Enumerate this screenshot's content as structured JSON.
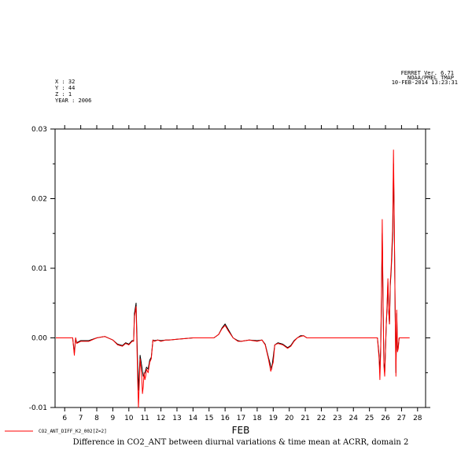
{
  "header": {
    "meta_left": [
      "X : 32",
      "Y : 44",
      "Z : 1",
      "YEAR : 2006"
    ],
    "meta_right": [
      "FERRET Ver. 6.71",
      "NOAA/PMEL TMAP",
      "10-FEB-2014 13:23:31"
    ]
  },
  "chart_data": {
    "type": "line",
    "title": "Difference in CO2_ANT between diurnal variations & time mean at ACRR, domain 2",
    "xlabel": "FEB",
    "ylabel": "",
    "xlim": [
      5.4,
      28.5
    ],
    "ylim": [
      -0.01,
      0.03
    ],
    "x_ticks": [
      6,
      7,
      8,
      9,
      10,
      11,
      12,
      13,
      14,
      15,
      16,
      17,
      18,
      19,
      20,
      21,
      22,
      23,
      24,
      25,
      26,
      27,
      28
    ],
    "y_ticks": [
      -0.01,
      0.0,
      0.01,
      0.02,
      0.03
    ],
    "y_tick_labels": [
      "-0.01",
      "0.00",
      "0.01",
      "0.02",
      "0.03"
    ],
    "series": [
      {
        "name": "CO2_ANT_DIFF_K2_002[Z=2]",
        "color": "#ff0000",
        "x": [
          5.45,
          6.5,
          6.6,
          6.68,
          6.75,
          7.0,
          7.5,
          8.0,
          8.5,
          9.0,
          9.3,
          9.6,
          9.8,
          10.0,
          10.2,
          10.3,
          10.35,
          10.45,
          10.55,
          10.6,
          10.7,
          10.8,
          10.85,
          10.9,
          10.95,
          11.0,
          11.05,
          11.1,
          11.2,
          11.3,
          11.4,
          11.5,
          11.6,
          11.8,
          12.0,
          12.3,
          12.5,
          13.0,
          14.0,
          15.0,
          15.3,
          15.6,
          15.8,
          16.0,
          16.2,
          16.5,
          16.8,
          17.0,
          17.5,
          18.0,
          18.3,
          18.5,
          18.7,
          18.85,
          19.0,
          19.1,
          19.3,
          19.6,
          19.9,
          20.1,
          20.3,
          20.5,
          20.7,
          20.9,
          21.1,
          21.3,
          21.5,
          22.0,
          23.0,
          24.0,
          25.0,
          25.5,
          25.6,
          25.65,
          25.7,
          25.75,
          25.8,
          25.85,
          25.9,
          25.95,
          26.0,
          26.05,
          26.1,
          26.15,
          26.2,
          26.25,
          26.3,
          26.35,
          26.4,
          26.45,
          26.5,
          26.55,
          26.6,
          26.65,
          26.7,
          26.75,
          26.8,
          26.85,
          26.9,
          27.0,
          27.1,
          27.3,
          27.5
        ],
        "y": [
          0.0,
          0.0,
          -0.0025,
          0.0,
          -0.0008,
          -0.0005,
          -0.0005,
          0.0,
          0.0002,
          -0.0003,
          -0.001,
          -0.0012,
          -0.0008,
          -0.001,
          -0.0005,
          -0.0005,
          0.003,
          0.0045,
          -0.006,
          -0.01,
          -0.003,
          -0.0055,
          -0.008,
          -0.007,
          -0.005,
          -0.006,
          -0.0055,
          -0.0045,
          -0.005,
          -0.0035,
          -0.003,
          -0.0003,
          -0.0005,
          -0.0003,
          -0.0005,
          -0.0003,
          -0.0003,
          -0.0002,
          0.0,
          0.0,
          0.0,
          0.0005,
          0.0013,
          0.0018,
          0.001,
          0.0,
          -0.0005,
          -0.0005,
          -0.0003,
          -0.0005,
          -0.0003,
          -0.001,
          -0.003,
          -0.0048,
          -0.0035,
          -0.001,
          -0.0008,
          -0.001,
          -0.0015,
          -0.0012,
          -0.0005,
          0.0,
          0.0002,
          0.0003,
          0.0,
          0.0,
          0.0,
          0.0,
          0.0,
          0.0,
          0.0,
          0.0,
          -0.003,
          -0.006,
          -0.002,
          0.006,
          0.017,
          0.005,
          -0.004,
          -0.0055,
          -0.002,
          0.002,
          0.005,
          0.0085,
          0.004,
          0.002,
          0.008,
          0.01,
          0.013,
          0.016,
          0.027,
          0.017,
          0.004,
          -0.0055,
          0.004,
          -0.002,
          -0.0015,
          0.0,
          0.0,
          0.0,
          0.0,
          0.0,
          0.0
        ]
      },
      {
        "color": "#000000",
        "x": [
          5.45,
          6.5,
          6.6,
          6.68,
          6.75,
          7.0,
          7.5,
          8.0,
          8.5,
          9.0,
          9.3,
          9.6,
          9.8,
          10.0,
          10.2,
          10.3,
          10.35,
          10.45,
          10.55,
          10.6,
          10.7,
          10.8,
          10.9,
          11.0,
          11.1,
          11.2,
          11.3,
          11.4,
          11.5,
          11.6,
          11.8,
          12.0,
          12.3,
          12.5,
          13.0,
          14.0,
          15.0,
          15.3,
          15.6,
          15.8,
          16.0,
          16.2,
          16.5,
          16.8,
          17.0,
          17.5,
          18.0,
          18.3,
          18.5,
          18.7,
          18.9,
          19.1,
          19.3,
          19.6,
          19.9,
          20.1,
          20.3,
          20.5,
          20.7,
          20.9,
          21.1,
          21.3,
          21.5,
          22.0,
          23.0,
          24.0,
          25.0,
          25.5,
          25.6,
          25.65,
          25.7,
          25.75,
          25.8,
          25.85,
          25.9,
          25.95,
          26.0,
          26.05,
          26.1,
          26.15,
          26.2,
          26.25,
          26.3,
          26.35,
          26.4,
          26.45,
          26.5,
          26.55,
          26.6,
          26.65,
          26.7,
          26.75,
          26.8,
          26.85,
          26.9,
          27.0,
          27.1,
          27.3,
          27.5
        ],
        "y": [
          0.0,
          0.0,
          -0.0022,
          0.0,
          -0.0007,
          -0.0004,
          -0.0004,
          0.0,
          0.0002,
          -0.0003,
          -0.0009,
          -0.0011,
          -0.0007,
          -0.0009,
          -0.0004,
          -0.0004,
          0.0035,
          0.005,
          -0.004,
          -0.0075,
          -0.0025,
          -0.004,
          -0.0055,
          -0.005,
          -0.0042,
          -0.0045,
          -0.0032,
          -0.0028,
          -0.0003,
          -0.0004,
          -0.0003,
          -0.0004,
          -0.0003,
          -0.0003,
          -0.0002,
          0.0,
          0.0,
          0.0,
          0.0005,
          0.0014,
          0.002,
          0.0012,
          0.0,
          -0.0004,
          -0.0005,
          -0.0003,
          -0.0004,
          -0.0003,
          -0.0009,
          -0.0028,
          -0.0045,
          -0.001,
          -0.0007,
          -0.0009,
          -0.0014,
          -0.0011,
          -0.0004,
          0.0,
          0.0003,
          0.0003,
          0.0,
          0.0,
          0.0,
          0.0,
          0.0,
          0.0,
          0.0,
          0.0,
          -0.0025,
          -0.005,
          -0.0015,
          0.005,
          0.015,
          0.0045,
          -0.0035,
          -0.005,
          -0.0018,
          0.0018,
          0.0045,
          0.008,
          0.0038,
          0.002,
          0.0075,
          0.0095,
          0.012,
          0.015,
          0.025,
          0.016,
          0.004,
          -0.005,
          0.0035,
          -0.0018,
          -0.0012,
          0.0,
          0.0,
          0.0,
          0.0,
          0.0,
          0.0
        ]
      }
    ],
    "grid": false,
    "legend": {
      "position": "bottom-left",
      "entries": [
        "CO2_ANT_DIFF_K2_002[Z=2]"
      ]
    }
  }
}
